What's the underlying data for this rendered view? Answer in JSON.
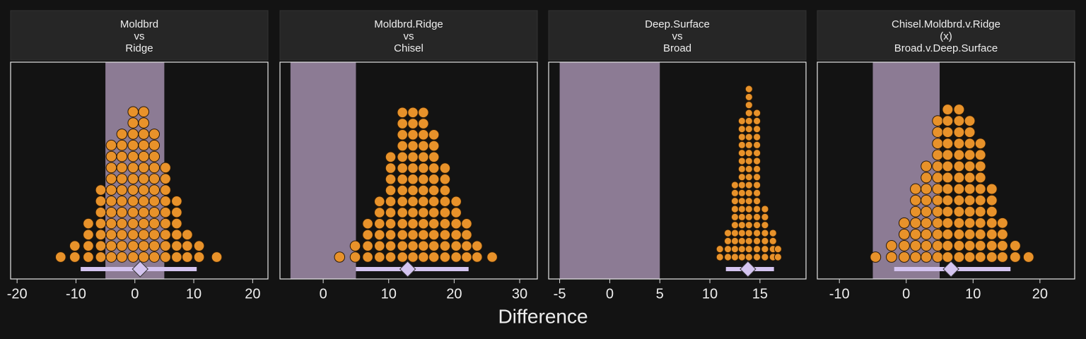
{
  "chart_data": [
    {
      "type": "dotplot",
      "title": [
        "Moldbrd",
        "vs",
        "Ridge"
      ],
      "x": [
        -12.6,
        -10.2,
        -7.9,
        -5.8,
        -4.0,
        -2.2,
        -0.3,
        1.5,
        3.3,
        5.2,
        7.1,
        8.9,
        10.9,
        13.9
      ],
      "counts": [
        1,
        2,
        4,
        7,
        11,
        12,
        14,
        14,
        12,
        9,
        6,
        3,
        2,
        1
      ],
      "rope": [
        -5,
        5
      ],
      "interval": [
        -9.2,
        10.5
      ],
      "point": 0.9,
      "xlim": [
        -21.1,
        22.6
      ],
      "xticks": [
        -20,
        -10,
        0,
        10,
        20
      ],
      "color": "#e8922a",
      "rope_color": "#8c7b94",
      "interval_color": "#d4c4f0"
    },
    {
      "type": "dotplot",
      "title": [
        "Moldbrd.Ridge",
        "vs",
        "Chisel"
      ],
      "x": [
        2.5,
        4.9,
        6.8,
        8.6,
        10.3,
        12.1,
        13.7,
        15.3,
        16.9,
        18.6,
        20.3,
        21.9,
        23.5,
        25.8
      ],
      "counts": [
        1,
        2,
        4,
        6,
        10,
        14,
        14,
        14,
        12,
        9,
        6,
        4,
        2,
        1
      ],
      "rope": [
        -5,
        5
      ],
      "interval": [
        5.0,
        22.2
      ],
      "point": 12.9,
      "xlim": [
        -6.6,
        32.7
      ],
      "xticks": [
        0,
        10,
        20,
        30
      ],
      "color": "#e8922a",
      "rope_color": "#8c7b94",
      "interval_color": "#d4c4f0"
    },
    {
      "type": "dotplot",
      "title": [
        "Deep.Surface",
        "vs",
        "Broad"
      ],
      "x": [
        11.0,
        11.8,
        12.5,
        13.2,
        13.9,
        14.7,
        15.5,
        16.3,
        16.8
      ],
      "counts": [
        2,
        4,
        10,
        18,
        22,
        19,
        7,
        4,
        2
      ],
      "rope": [
        -5,
        5
      ],
      "interval": [
        11.6,
        16.4
      ],
      "point": 13.8,
      "xlim": [
        -6.1,
        19.6
      ],
      "xticks": [
        -5,
        0,
        5,
        10,
        15
      ],
      "color": "#e8922a",
      "rope_color": "#8c7b94",
      "interval_color": "#d4c4f0"
    },
    {
      "type": "dotplot",
      "title": [
        "Chisel.Moldbrd.v.Ridge",
        "(x)",
        "Broad.v.Deep.Surface"
      ],
      "x": [
        -4.6,
        -2.2,
        -0.3,
        1.4,
        3.0,
        4.7,
        6.2,
        7.9,
        9.5,
        11.1,
        12.8,
        14.4,
        16.3,
        18.3
      ],
      "counts": [
        1,
        2,
        4,
        7,
        9,
        13,
        14,
        14,
        13,
        11,
        7,
        4,
        2,
        1
      ],
      "rope": [
        -5,
        5
      ],
      "interval": [
        -1.8,
        15.6
      ],
      "point": 6.7,
      "xlim": [
        -13.3,
        25.2
      ],
      "xticks": [
        -10,
        0,
        10,
        20
      ],
      "color": "#e8922a",
      "rope_color": "#8c7b94",
      "interval_color": "#d4c4f0"
    }
  ],
  "xlabel": "Difference"
}
